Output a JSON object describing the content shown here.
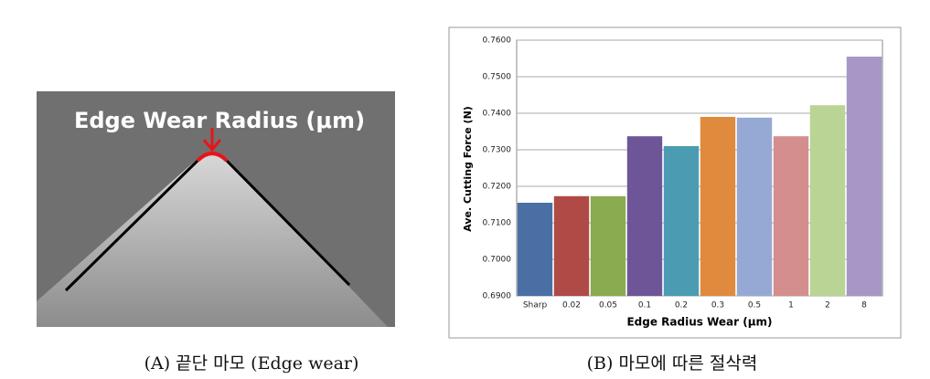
{
  "figure": {
    "image_label": "Edge Wear Radius (μm)",
    "captions": [
      "(A) 끝단 마모 (Edge wear)",
      "(B) 마모에 따른 절삭력"
    ]
  },
  "chart_data": {
    "type": "bar",
    "x_label": "Edge Radius Wear (μm)",
    "y_label": "Ave. Cutting Force (N)",
    "categories": [
      "Sharp",
      "0.02",
      "0.05",
      "0.1",
      "0.2",
      "0.3",
      "0.5",
      "1",
      "2",
      "8"
    ],
    "values": [
      0.7155,
      0.7173,
      0.7173,
      0.7337,
      0.731,
      0.739,
      0.7388,
      0.7337,
      0.7422,
      0.7555
    ],
    "colors": [
      "#4a6fa5",
      "#b04a47",
      "#8aab4f",
      "#6e5598",
      "#4b9cb2",
      "#e08a3e",
      "#95a9d4",
      "#d48e8e",
      "#b9d494",
      "#a797c6"
    ],
    "ylim": [
      0.69,
      0.76
    ],
    "yticks": [
      {
        "value": 0.69,
        "label": "0.6900"
      },
      {
        "value": 0.7,
        "label": "0.7000"
      },
      {
        "value": 0.71,
        "label": "0.7100"
      },
      {
        "value": 0.72,
        "label": "0.7200"
      },
      {
        "value": 0.73,
        "label": "0.7300"
      },
      {
        "value": 0.74,
        "label": "0.7400"
      },
      {
        "value": 0.75,
        "label": "0.7500"
      },
      {
        "value": 0.76,
        "label": "0.7600"
      }
    ],
    "grid": true
  }
}
